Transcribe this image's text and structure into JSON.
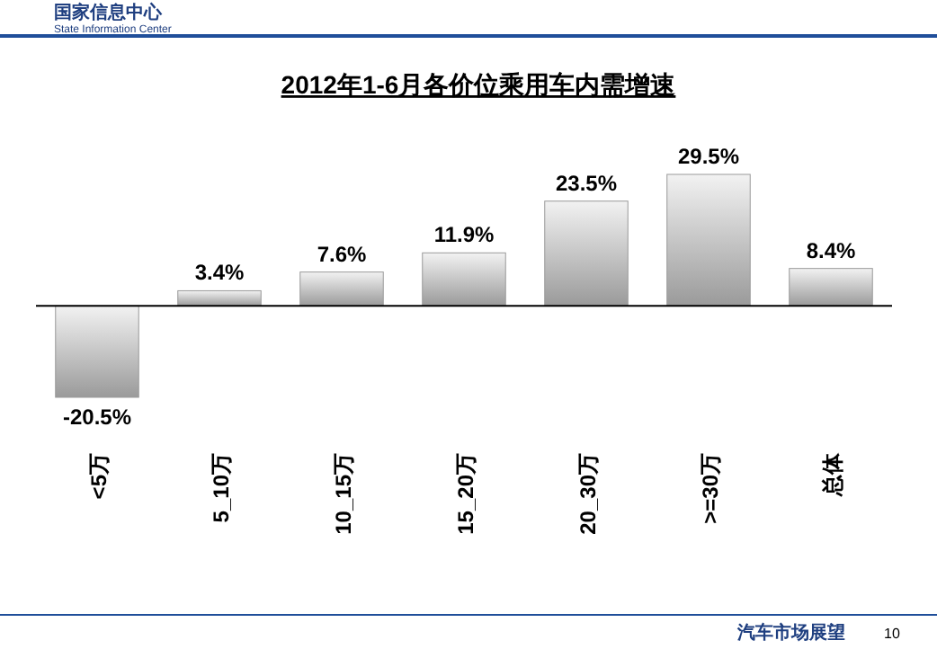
{
  "chart_data": {
    "type": "bar",
    "title": "2012年1-6月各价位乘用车内需增速",
    "categories": [
      "<5万",
      "5_10万",
      "10_15万",
      "15_20万",
      "20_30万",
      ">=30万",
      "总体"
    ],
    "values": [
      -20.5,
      3.4,
      7.6,
      11.9,
      23.5,
      29.5,
      8.4
    ],
    "value_labels": [
      "-20.5%",
      "3.4%",
      "7.6%",
      "11.9%",
      "23.5%",
      "29.5%",
      "8.4%"
    ],
    "color": "#9a9a9a",
    "annotations": [
      "国家信息中心",
      "State Information Center",
      "汽车市场展望",
      "10"
    ]
  }
}
